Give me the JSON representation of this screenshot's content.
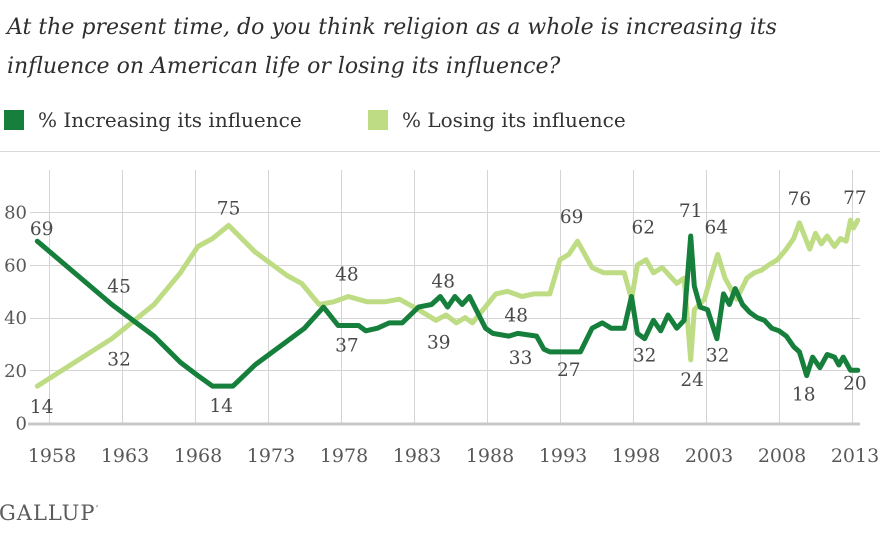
{
  "title": {
    "line1": "At the present time, do you think religion as a whole is increasing its",
    "line2": "influence on American life or losing its influence?"
  },
  "legend": {
    "increasing_label": "% Increasing its influence",
    "losing_label": "% Losing its influence"
  },
  "brand": {
    "name": "GALLUP",
    "mark": "’"
  },
  "colors": {
    "increasing": "#157f3b",
    "losing": "#bedc83",
    "grid": "#d4d4d4",
    "top_border": "#d9d9d9",
    "axis_line": "#c8c8c8",
    "axis_label": "#58585b",
    "point_label": "#4a4a4a"
  },
  "chart_data": {
    "type": "line",
    "title": "At the present time, do you think religion as a whole is increasing its influence on American life or losing its influence?",
    "xlabel": "",
    "ylabel": "%",
    "x_ticks": [
      1958,
      1963,
      1968,
      1973,
      1978,
      1983,
      1988,
      1993,
      1998,
      2003,
      2008,
      2013
    ],
    "y_ticks": [
      0,
      20,
      40,
      60,
      80
    ],
    "x_range": [
      1956.8,
      2013.6
    ],
    "y_range": [
      0,
      100
    ],
    "grid": true,
    "legend_position": "top",
    "series": [
      {
        "name": "% Losing its influence",
        "color": "#bedc83",
        "points": [
          [
            1957.2,
            14
          ],
          [
            1962.3,
            32
          ],
          [
            1965.2,
            45
          ],
          [
            1967.0,
            57
          ],
          [
            1968.2,
            67
          ],
          [
            1969.2,
            70
          ],
          [
            1970.3,
            75
          ],
          [
            1972.1,
            65
          ],
          [
            1974.3,
            56
          ],
          [
            1975.3,
            53
          ],
          [
            1976.5,
            45
          ],
          [
            1977.5,
            46
          ],
          [
            1978.5,
            48
          ],
          [
            1979.8,
            46
          ],
          [
            1981.0,
            46
          ],
          [
            1982.0,
            47
          ],
          [
            1983.3,
            43
          ],
          [
            1984.5,
            39
          ],
          [
            1985.2,
            41
          ],
          [
            1985.9,
            38
          ],
          [
            1986.5,
            40
          ],
          [
            1987.0,
            38
          ],
          [
            1988.6,
            49
          ],
          [
            1989.4,
            50
          ],
          [
            1990.4,
            48
          ],
          [
            1991.2,
            49
          ],
          [
            1992.3,
            49
          ],
          [
            1993.0,
            62
          ],
          [
            1993.6,
            64
          ],
          [
            1994.2,
            69
          ],
          [
            1995.2,
            59
          ],
          [
            1996.0,
            57
          ],
          [
            1997.4,
            57
          ],
          [
            1997.9,
            47
          ],
          [
            1998.3,
            60
          ],
          [
            1998.9,
            62
          ],
          [
            1999.4,
            57
          ],
          [
            2000.0,
            59
          ],
          [
            2001.0,
            53
          ],
          [
            2001.5,
            55
          ],
          [
            2001.95,
            24
          ],
          [
            2002.2,
            43
          ],
          [
            2002.9,
            47
          ],
          [
            2003.3,
            55
          ],
          [
            2003.8,
            64
          ],
          [
            2004.3,
            55
          ],
          [
            2004.8,
            50
          ],
          [
            2005.1,
            47
          ],
          [
            2005.8,
            55
          ],
          [
            2006.3,
            57
          ],
          [
            2006.8,
            58
          ],
          [
            2007.3,
            60
          ],
          [
            2007.9,
            62
          ],
          [
            2008.5,
            66
          ],
          [
            2009.0,
            70
          ],
          [
            2009.4,
            76
          ],
          [
            2010.1,
            66
          ],
          [
            2010.5,
            72
          ],
          [
            2010.9,
            68
          ],
          [
            2011.3,
            71
          ],
          [
            2011.8,
            67
          ],
          [
            2012.2,
            70
          ],
          [
            2012.6,
            69
          ],
          [
            2012.9,
            77
          ],
          [
            2013.1,
            74
          ],
          [
            2013.4,
            77
          ]
        ]
      },
      {
        "name": "% Increasing its influence",
        "color": "#157f3b",
        "points": [
          [
            1957.2,
            69
          ],
          [
            1962.3,
            45
          ],
          [
            1965.2,
            33
          ],
          [
            1967.0,
            23
          ],
          [
            1968.2,
            18
          ],
          [
            1969.2,
            14
          ],
          [
            1970.6,
            14
          ],
          [
            1972.1,
            22
          ],
          [
            1974.3,
            31
          ],
          [
            1975.5,
            36
          ],
          [
            1976.8,
            44
          ],
          [
            1977.8,
            37
          ],
          [
            1979.2,
            37
          ],
          [
            1979.7,
            35
          ],
          [
            1980.5,
            36
          ],
          [
            1981.3,
            38
          ],
          [
            1982.2,
            38
          ],
          [
            1983.3,
            44
          ],
          [
            1984.2,
            45
          ],
          [
            1984.8,
            48
          ],
          [
            1985.3,
            44
          ],
          [
            1985.8,
            48
          ],
          [
            1986.3,
            45
          ],
          [
            1986.8,
            48
          ],
          [
            1987.9,
            36
          ],
          [
            1988.4,
            34
          ],
          [
            1989.5,
            33
          ],
          [
            1990.1,
            34
          ],
          [
            1991.4,
            33
          ],
          [
            1991.9,
            28
          ],
          [
            1992.3,
            27
          ],
          [
            1994.4,
            27
          ],
          [
            1995.2,
            36
          ],
          [
            1995.9,
            38
          ],
          [
            1996.5,
            36
          ],
          [
            1997.4,
            36
          ],
          [
            1997.9,
            48
          ],
          [
            1998.3,
            34
          ],
          [
            1998.8,
            32
          ],
          [
            1999.4,
            39
          ],
          [
            1999.9,
            35
          ],
          [
            2000.4,
            41
          ],
          [
            2001.0,
            36
          ],
          [
            2001.5,
            39
          ],
          [
            2001.95,
            71
          ],
          [
            2002.2,
            52
          ],
          [
            2002.6,
            44
          ],
          [
            2003.1,
            43
          ],
          [
            2003.75,
            32
          ],
          [
            2004.2,
            49
          ],
          [
            2004.6,
            45
          ],
          [
            2005.0,
            51
          ],
          [
            2005.5,
            45
          ],
          [
            2006.0,
            42
          ],
          [
            2006.5,
            40
          ],
          [
            2007.0,
            39
          ],
          [
            2007.5,
            36
          ],
          [
            2008.0,
            35
          ],
          [
            2008.5,
            33
          ],
          [
            2009.0,
            29
          ],
          [
            2009.4,
            27
          ],
          [
            2009.9,
            18
          ],
          [
            2010.3,
            25
          ],
          [
            2010.8,
            21
          ],
          [
            2011.3,
            26
          ],
          [
            2011.8,
            25
          ],
          [
            2012.1,
            22
          ],
          [
            2012.4,
            25
          ],
          [
            2012.9,
            20
          ],
          [
            2013.4,
            20
          ]
        ]
      }
    ],
    "point_labels": [
      {
        "series": "increasing",
        "text": "69",
        "x": 1957.5,
        "v": 69,
        "dy": -6
      },
      {
        "series": "losing",
        "text": "14",
        "x": 1957.5,
        "v": 14,
        "dy": 27
      },
      {
        "series": "increasing",
        "text": "45",
        "x": 1962.8,
        "v": 45,
        "dy": -12
      },
      {
        "series": "losing",
        "text": "32",
        "x": 1962.8,
        "v": 32,
        "dy": 27
      },
      {
        "series": "losing",
        "text": "75",
        "x": 1970.3,
        "v": 75,
        "dy": -11
      },
      {
        "series": "increasing",
        "text": "14",
        "x": 1969.8,
        "v": 14,
        "dy": 26
      },
      {
        "series": "losing",
        "text": "48",
        "x": 1978.4,
        "v": 48,
        "dy": -16
      },
      {
        "series": "increasing",
        "text": "37",
        "x": 1978.4,
        "v": 37,
        "dy": 26
      },
      {
        "series": "increasing",
        "text": "48",
        "x": 1985.0,
        "v": 48,
        "dy": -9
      },
      {
        "series": "losing",
        "text": "39",
        "x": 1984.7,
        "v": 39,
        "dy": 28
      },
      {
        "series": "losing",
        "text": "48",
        "x": 1990.0,
        "v": 48,
        "dy": 25
      },
      {
        "series": "increasing",
        "text": "33",
        "x": 1990.3,
        "v": 33,
        "dy": 28
      },
      {
        "series": "losing",
        "text": "69",
        "x": 1993.8,
        "v": 69,
        "dy": -18
      },
      {
        "series": "increasing",
        "text": "27",
        "x": 1993.6,
        "v": 27,
        "dy": 24
      },
      {
        "series": "losing",
        "text": "62",
        "x": 1998.7,
        "v": 62,
        "dy": -26
      },
      {
        "series": "increasing",
        "text": "32",
        "x": 1998.8,
        "v": 32,
        "dy": 23
      },
      {
        "series": "increasing",
        "text": "71",
        "x": 2001.95,
        "v": 71,
        "dy": -19
      },
      {
        "series": "losing",
        "text": "24",
        "x": 2002.05,
        "v": 24,
        "dy": 26
      },
      {
        "series": "losing",
        "text": "64",
        "x": 2003.7,
        "v": 64,
        "dy": -21
      },
      {
        "series": "increasing",
        "text": "32",
        "x": 2003.8,
        "v": 32,
        "dy": 23
      },
      {
        "series": "losing",
        "text": "76",
        "x": 2009.4,
        "v": 76,
        "dy": -18
      },
      {
        "series": "increasing",
        "text": "18",
        "x": 2009.7,
        "v": 18,
        "dy": 25
      },
      {
        "series": "losing",
        "text": "77",
        "x": 2013.2,
        "v": 77,
        "dy": -16
      },
      {
        "series": "increasing",
        "text": "20",
        "x": 2013.2,
        "v": 20,
        "dy": 19
      }
    ]
  }
}
